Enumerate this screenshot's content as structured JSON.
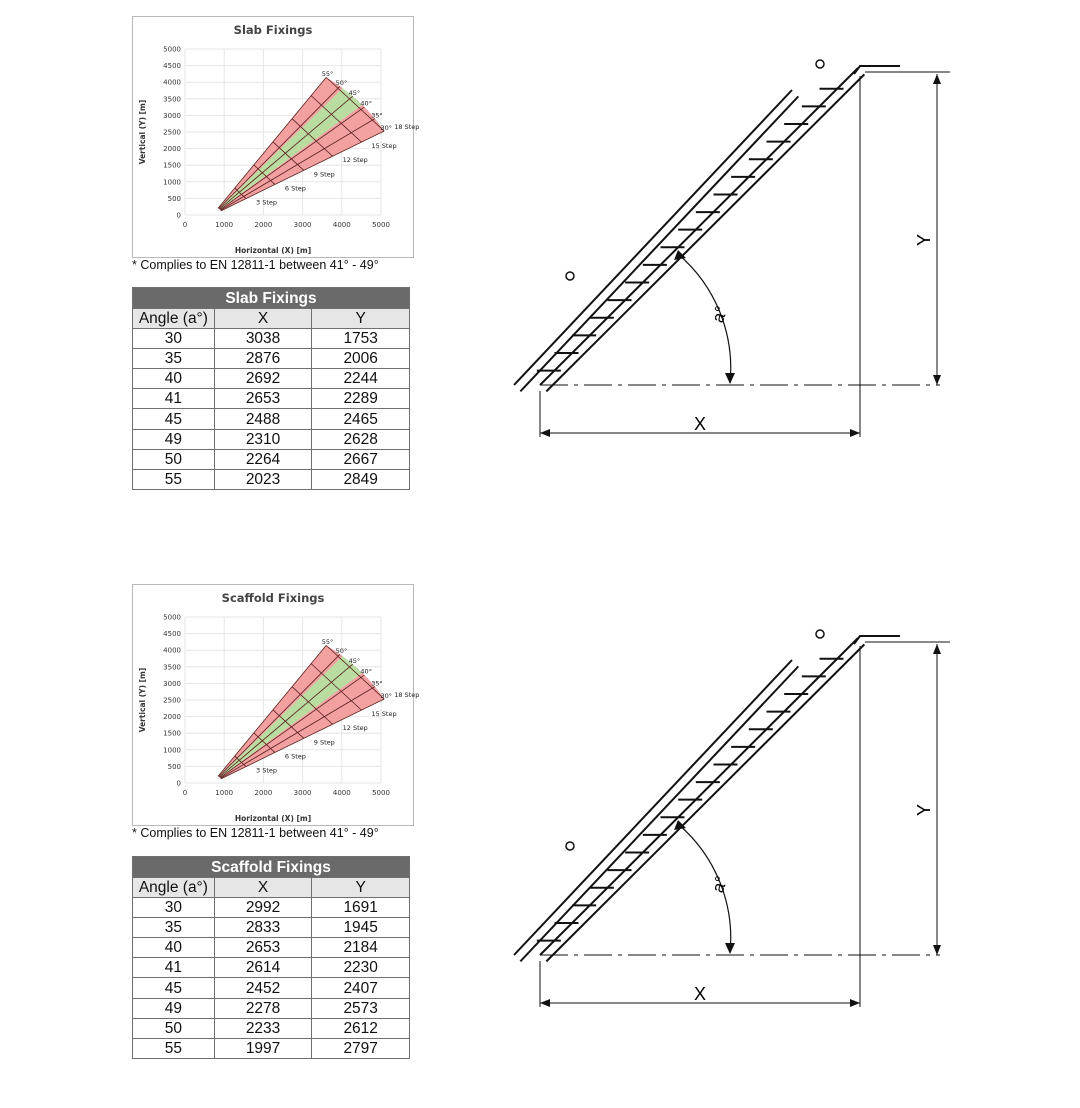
{
  "sections": [
    {
      "id": "slab",
      "chart_data": {
        "type": "area",
        "title": "Slab Fixings",
        "xlabel": "Horizontal (X) [m]",
        "ylabel": "Vertical (Y) [m]",
        "xlim": [
          0,
          5000
        ],
        "ylim": [
          0,
          5000
        ],
        "xticks": [
          0,
          1000,
          2000,
          3000,
          4000,
          5000
        ],
        "yticks": [
          0,
          500,
          1000,
          1500,
          2000,
          2500,
          3000,
          3500,
          4000,
          4500,
          5000
        ],
        "angle_labels": [
          "55°",
          "50°",
          "45°",
          "40°",
          "35°",
          "30°"
        ],
        "step_labels": [
          "3 Step",
          "6 Step",
          "9 Step",
          "12 Step",
          "15 Step",
          "18 Step"
        ],
        "step_lengths": [
          0.99,
          1.84,
          2.69,
          3.54,
          4.39,
          5.06
        ],
        "base_point": [
          700,
          0
        ],
        "angles": [
          30,
          35,
          40,
          45,
          50,
          55
        ],
        "compliant_range": [
          41,
          49
        ],
        "colors": {
          "compliant": "#b9dca0",
          "noncompliant": "#f2a0a0",
          "lines": "#5a1f1f",
          "grid": "#e6e6e6"
        }
      },
      "note": "* Complies to EN 12811-1 between 41° - 49°",
      "table": {
        "title": "Slab Fixings",
        "headers": [
          "Angle (a°)",
          "X",
          "Y"
        ],
        "rows": [
          [
            "30",
            "3038",
            "1753"
          ],
          [
            "35",
            "2876",
            "2006"
          ],
          [
            "40",
            "2692",
            "2244"
          ],
          [
            "41",
            "2653",
            "2289"
          ],
          [
            "45",
            "2488",
            "2465"
          ],
          [
            "49",
            "2310",
            "2628"
          ],
          [
            "50",
            "2264",
            "2667"
          ],
          [
            "55",
            "2023",
            "2849"
          ]
        ]
      },
      "diagram": {
        "x_label": "X",
        "y_label": "Y",
        "angle_label": "a°"
      }
    },
    {
      "id": "scaffold",
      "chart_data": {
        "type": "area",
        "title": "Scaffold Fixings",
        "xlabel": "Horizontal (X) [m]",
        "ylabel": "Vertical (Y) [m]",
        "xlim": [
          0,
          5000
        ],
        "ylim": [
          0,
          5000
        ],
        "xticks": [
          0,
          1000,
          2000,
          3000,
          4000,
          5000
        ],
        "yticks": [
          0,
          500,
          1000,
          1500,
          2000,
          2500,
          3000,
          3500,
          4000,
          4500,
          5000
        ],
        "angle_labels": [
          "55°",
          "50°",
          "45°",
          "40°",
          "35°",
          "30°"
        ],
        "step_labels": [
          "3 Step",
          "6 Step",
          "9 Step",
          "12 Step",
          "15 Step",
          "18 Step"
        ],
        "step_lengths": [
          0.99,
          1.84,
          2.69,
          3.54,
          4.39,
          5.06
        ],
        "base_point": [
          700,
          0
        ],
        "angles": [
          30,
          35,
          40,
          45,
          50,
          55
        ],
        "compliant_range": [
          41,
          49
        ],
        "colors": {
          "compliant": "#b9dca0",
          "noncompliant": "#f2a0a0",
          "lines": "#5a1f1f",
          "grid": "#e6e6e6"
        }
      },
      "note": "* Complies to EN 12811-1 between 41° - 49°",
      "table": {
        "title": "Scaffold Fixings",
        "headers": [
          "Angle (a°)",
          "X",
          "Y"
        ],
        "rows": [
          [
            "30",
            "2992",
            "1691"
          ],
          [
            "35",
            "2833",
            "1945"
          ],
          [
            "40",
            "2653",
            "2184"
          ],
          [
            "41",
            "2614",
            "2230"
          ],
          [
            "45",
            "2452",
            "2407"
          ],
          [
            "49",
            "2278",
            "2573"
          ],
          [
            "50",
            "2233",
            "2612"
          ],
          [
            "55",
            "1997",
            "2797"
          ]
        ]
      },
      "diagram": {
        "x_label": "X",
        "y_label": "Y",
        "angle_label": "a°"
      }
    }
  ]
}
